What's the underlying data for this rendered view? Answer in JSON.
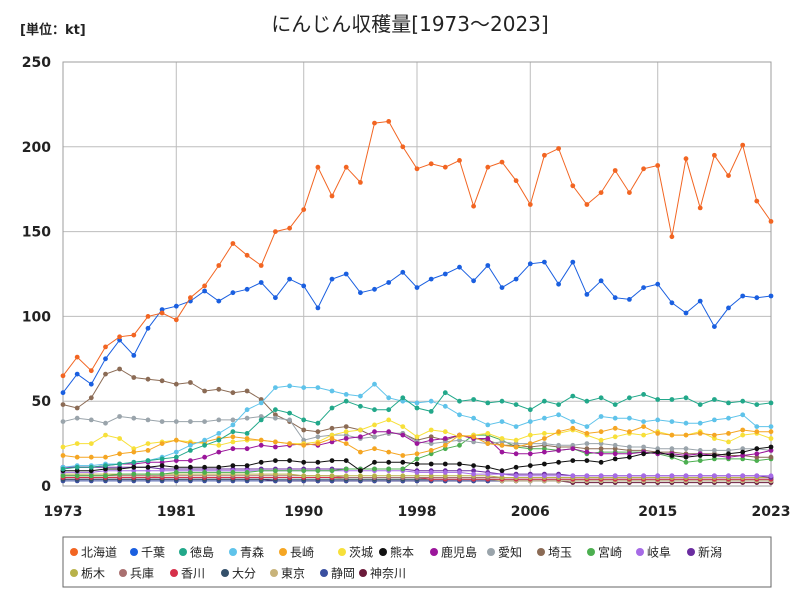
{
  "chart_data": {
    "type": "line",
    "title": "にんじん収穫量[1973～2023]",
    "unit_label": "[単位：kt]",
    "xlabel": "",
    "ylabel": "",
    "ylim": [
      0,
      250
    ],
    "xlim": [
      1973,
      2023
    ],
    "yticks": [
      0,
      50,
      100,
      150,
      200,
      250
    ],
    "xticks": [
      1973,
      1981,
      1990,
      1998,
      2006,
      2015,
      2023
    ],
    "grid": true,
    "legend_position": "bottom",
    "x": [
      1973,
      1974,
      1975,
      1976,
      1977,
      1978,
      1979,
      1980,
      1981,
      1982,
      1983,
      1984,
      1985,
      1986,
      1987,
      1988,
      1989,
      1990,
      1991,
      1992,
      1993,
      1994,
      1995,
      1996,
      1997,
      1998,
      1999,
      2000,
      2001,
      2002,
      2003,
      2004,
      2005,
      2006,
      2007,
      2008,
      2009,
      2010,
      2011,
      2012,
      2013,
      2014,
      2015,
      2016,
      2017,
      2018,
      2019,
      2020,
      2021,
      2022,
      2023
    ],
    "series": [
      {
        "name": "北海道",
        "color": "#f26522",
        "values": [
          65,
          76,
          68,
          82,
          88,
          89,
          100,
          102,
          98,
          111,
          118,
          130,
          143,
          136,
          130,
          150,
          152,
          163,
          188,
          171,
          188,
          179,
          214,
          215,
          200,
          187,
          190,
          188,
          192,
          165,
          188,
          191,
          180,
          166,
          195,
          199,
          177,
          166,
          173,
          186,
          173,
          187,
          189,
          147,
          193,
          164,
          195,
          183,
          201,
          168,
          156
        ]
      },
      {
        "name": "千葉",
        "color": "#1a5fe0",
        "values": [
          55,
          66,
          60,
          75,
          86,
          77,
          93,
          104,
          106,
          109,
          115,
          109,
          114,
          116,
          120,
          111,
          122,
          118,
          105,
          122,
          125,
          114,
          116,
          120,
          126,
          117,
          122,
          125,
          129,
          121,
          130,
          117,
          122,
          131,
          132,
          119,
          132,
          113,
          121,
          111,
          110,
          117,
          119,
          108,
          102,
          109,
          94,
          105,
          112,
          111,
          112
        ]
      },
      {
        "name": "徳島",
        "color": "#22a88a",
        "values": [
          10,
          11,
          11,
          12,
          13,
          14,
          15,
          16,
          17,
          21,
          24,
          27,
          32,
          31,
          39,
          45,
          43,
          39,
          37,
          46,
          50,
          47,
          45,
          45,
          52,
          46,
          44,
          55,
          50,
          51,
          49,
          50,
          48,
          45,
          50,
          48,
          53,
          50,
          52,
          48,
          52,
          54,
          51,
          51,
          52,
          48,
          51,
          49,
          50,
          48,
          49
        ]
      },
      {
        "name": "青森",
        "color": "#5fc3ea",
        "values": [
          11,
          12,
          12,
          13,
          13,
          14,
          15,
          17,
          20,
          24,
          27,
          31,
          36,
          45,
          49,
          58,
          59,
          58,
          58,
          56,
          54,
          53,
          60,
          52,
          50,
          49,
          50,
          47,
          42,
          40,
          36,
          38,
          35,
          38,
          40,
          42,
          38,
          35,
          41,
          40,
          40,
          38,
          39,
          38,
          37,
          37,
          39,
          40,
          42,
          35,
          35
        ]
      },
      {
        "name": "長崎",
        "color": "#f5a623",
        "values": [
          18,
          17,
          17,
          17,
          19,
          20,
          21,
          25,
          27,
          25,
          26,
          28,
          29,
          28,
          27,
          26,
          25,
          24,
          25,
          28,
          25,
          20,
          22,
          20,
          18,
          19,
          21,
          24,
          30,
          29,
          25,
          24,
          23,
          25,
          28,
          32,
          34,
          31,
          32,
          34,
          32,
          35,
          31,
          30,
          30,
          31,
          30,
          31,
          33,
          32,
          32
        ]
      },
      {
        "name": "茨城",
        "color": "#f7e03a",
        "values": [
          23,
          25,
          25,
          30,
          28,
          22,
          25,
          26,
          27,
          26,
          25,
          24,
          26,
          27,
          27,
          26,
          25,
          25,
          26,
          30,
          32,
          33,
          36,
          39,
          35,
          29,
          33,
          32,
          29,
          30,
          31,
          28,
          27,
          30,
          31,
          31,
          33,
          30,
          27,
          29,
          31,
          30,
          32,
          30,
          30,
          32,
          28,
          26,
          30,
          31,
          28
        ]
      },
      {
        "name": "熊本",
        "color": "#111111",
        "values": [
          9,
          9,
          9,
          10,
          10,
          11,
          11,
          12,
          11,
          11,
          11,
          11,
          12,
          12,
          14,
          15,
          15,
          14,
          14,
          15,
          15,
          9,
          14,
          14,
          14,
          13,
          13,
          13,
          13,
          12,
          11,
          9,
          11,
          12,
          13,
          14,
          15,
          15,
          14,
          16,
          17,
          19,
          20,
          18,
          17,
          18,
          18,
          19,
          20,
          22,
          23
        ]
      },
      {
        "name": "鹿児島",
        "color": "#9b169b",
        "values": [
          11,
          11,
          11,
          12,
          13,
          13,
          14,
          14,
          15,
          15,
          17,
          20,
          22,
          22,
          24,
          23,
          24,
          25,
          24,
          26,
          28,
          29,
          32,
          32,
          30,
          25,
          27,
          28,
          30,
          28,
          28,
          20,
          19,
          19,
          20,
          21,
          22,
          20,
          19,
          19,
          19,
          20,
          19,
          19,
          18,
          19,
          18,
          17,
          18,
          19,
          21
        ]
      },
      {
        "name": "愛知",
        "color": "#9aa4ab",
        "values": [
          38,
          40,
          39,
          37,
          41,
          40,
          39,
          38,
          38,
          38,
          38,
          39,
          39,
          40,
          41,
          40,
          39,
          27,
          29,
          30,
          30,
          28,
          29,
          31,
          31,
          26,
          25,
          26,
          27,
          26,
          25,
          26,
          25,
          25,
          25,
          24,
          24,
          25,
          25,
          24,
          23,
          23,
          22,
          22,
          22,
          21,
          21,
          21,
          22,
          22,
          21
        ]
      },
      {
        "name": "埼玉",
        "color": "#8b6b55",
        "values": [
          48,
          46,
          52,
          66,
          69,
          64,
          63,
          62,
          60,
          61,
          56,
          57,
          55,
          56,
          51,
          42,
          38,
          33,
          32,
          34,
          35,
          33,
          29,
          31,
          31,
          27,
          29,
          27,
          30,
          28,
          27,
          24,
          24,
          23,
          24,
          23,
          23,
          22,
          22,
          22,
          21,
          21,
          20,
          20,
          19,
          19,
          19,
          18,
          18,
          17,
          17
        ]
      },
      {
        "name": "宮崎",
        "color": "#4caf50",
        "values": [
          6,
          6,
          6,
          6,
          7,
          7,
          7,
          7,
          8,
          8,
          8,
          8,
          8,
          8,
          9,
          9,
          9,
          9,
          9,
          9,
          10,
          10,
          10,
          10,
          10,
          16,
          19,
          22,
          24,
          30,
          30,
          27,
          23,
          22,
          22,
          21,
          22,
          19,
          20,
          20,
          20,
          20,
          19,
          17,
          14,
          15,
          16,
          16,
          16,
          15,
          16
        ]
      },
      {
        "name": "岐阜",
        "color": "#a66be6",
        "values": [
          8,
          8,
          8,
          9,
          9,
          9,
          9,
          9,
          9,
          9,
          9,
          9,
          9,
          9,
          9,
          9,
          9,
          9,
          9,
          9,
          9,
          9,
          9,
          9,
          9,
          8,
          8,
          8,
          8,
          7,
          7,
          7,
          6,
          6,
          6,
          6,
          6,
          6,
          6,
          6,
          6,
          6,
          6,
          6,
          6,
          6,
          6,
          6,
          6,
          6,
          6
        ]
      },
      {
        "name": "新潟",
        "color": "#6a2ca0",
        "values": [
          11,
          11,
          11,
          11,
          11,
          11,
          11,
          10,
          10,
          10,
          10,
          10,
          10,
          10,
          10,
          10,
          10,
          10,
          10,
          10,
          10,
          10,
          10,
          10,
          10,
          9,
          9,
          9,
          9,
          9,
          8,
          7,
          7,
          7,
          7,
          7,
          6,
          6,
          6,
          6,
          6,
          6,
          6,
          6,
          6,
          6,
          6,
          6,
          6,
          6,
          5
        ]
      },
      {
        "name": "栃木",
        "color": "#b8b24a",
        "values": [
          7,
          7,
          7,
          7,
          7,
          7,
          7,
          7,
          7,
          7,
          7,
          7,
          7,
          7,
          7,
          7,
          7,
          6,
          6,
          6,
          6,
          6,
          6,
          6,
          6,
          6,
          6,
          6,
          6,
          6,
          6,
          5,
          5,
          5,
          5,
          5,
          5,
          5,
          5,
          5,
          5,
          5,
          5,
          5,
          5,
          5,
          5,
          5,
          5,
          5,
          5
        ]
      },
      {
        "name": "兵庫",
        "color": "#a97070",
        "values": [
          6,
          6,
          6,
          6,
          6,
          6,
          6,
          6,
          6,
          6,
          6,
          6,
          6,
          6,
          6,
          6,
          6,
          6,
          6,
          6,
          5,
          5,
          5,
          5,
          5,
          5,
          5,
          5,
          5,
          5,
          5,
          5,
          5,
          5,
          5,
          5,
          5,
          5,
          5,
          5,
          5,
          5,
          5,
          5,
          5,
          5,
          5,
          5,
          5,
          5,
          5
        ]
      },
      {
        "name": "香川",
        "color": "#d6304a",
        "values": [
          5,
          5,
          5,
          5,
          5,
          5,
          5,
          5,
          5,
          5,
          5,
          5,
          5,
          5,
          5,
          5,
          5,
          5,
          5,
          5,
          5,
          5,
          5,
          5,
          5,
          5,
          4,
          4,
          4,
          4,
          4,
          4,
          4,
          4,
          4,
          4,
          4,
          4,
          4,
          4,
          4,
          4,
          4,
          4,
          4,
          4,
          4,
          4,
          4,
          4,
          4
        ]
      },
      {
        "name": "大分",
        "color": "#34506a",
        "values": [
          4,
          4,
          4,
          4,
          4,
          4,
          4,
          4,
          4,
          4,
          4,
          4,
          4,
          4,
          4,
          4,
          4,
          4,
          4,
          4,
          4,
          4,
          4,
          4,
          4,
          4,
          4,
          4,
          4,
          4,
          4,
          4,
          4,
          4,
          4,
          4,
          4,
          4,
          4,
          4,
          4,
          4,
          4,
          4,
          4,
          4,
          4,
          4,
          4,
          4,
          4
        ]
      },
      {
        "name": "東京",
        "color": "#c8b37a",
        "values": [
          6,
          6,
          6,
          6,
          6,
          6,
          6,
          5,
          5,
          5,
          5,
          5,
          5,
          5,
          5,
          5,
          5,
          5,
          5,
          5,
          4,
          4,
          4,
          4,
          4,
          4,
          4,
          4,
          4,
          4,
          4,
          3,
          3,
          3,
          3,
          3,
          3,
          3,
          3,
          3,
          3,
          3,
          3,
          3,
          3,
          3,
          3,
          3,
          3,
          3,
          3
        ]
      },
      {
        "name": "静岡",
        "color": "#3a4fa0",
        "values": [
          3,
          3,
          3,
          3,
          3,
          3,
          3,
          3,
          3,
          3,
          3,
          3,
          3,
          3,
          3,
          3,
          3,
          3,
          3,
          3,
          3,
          3,
          3,
          3,
          3,
          3,
          3,
          3,
          3,
          3,
          3,
          3,
          3,
          3,
          3,
          3,
          3,
          3,
          3,
          3,
          3,
          3,
          3,
          3,
          3,
          3,
          3,
          3,
          3,
          3,
          3
        ]
      },
      {
        "name": "神奈川",
        "color": "#6b1a3a",
        "values": [
          4,
          4,
          4,
          4,
          4,
          4,
          4,
          4,
          4,
          4,
          4,
          4,
          4,
          4,
          4,
          3,
          3,
          3,
          3,
          3,
          3,
          3,
          3,
          3,
          3,
          3,
          3,
          3,
          3,
          3,
          3,
          3,
          3,
          3,
          3,
          3,
          2,
          2,
          2,
          2,
          2,
          2,
          2,
          2,
          2,
          2,
          2,
          2,
          2,
          2,
          2
        ]
      }
    ]
  }
}
